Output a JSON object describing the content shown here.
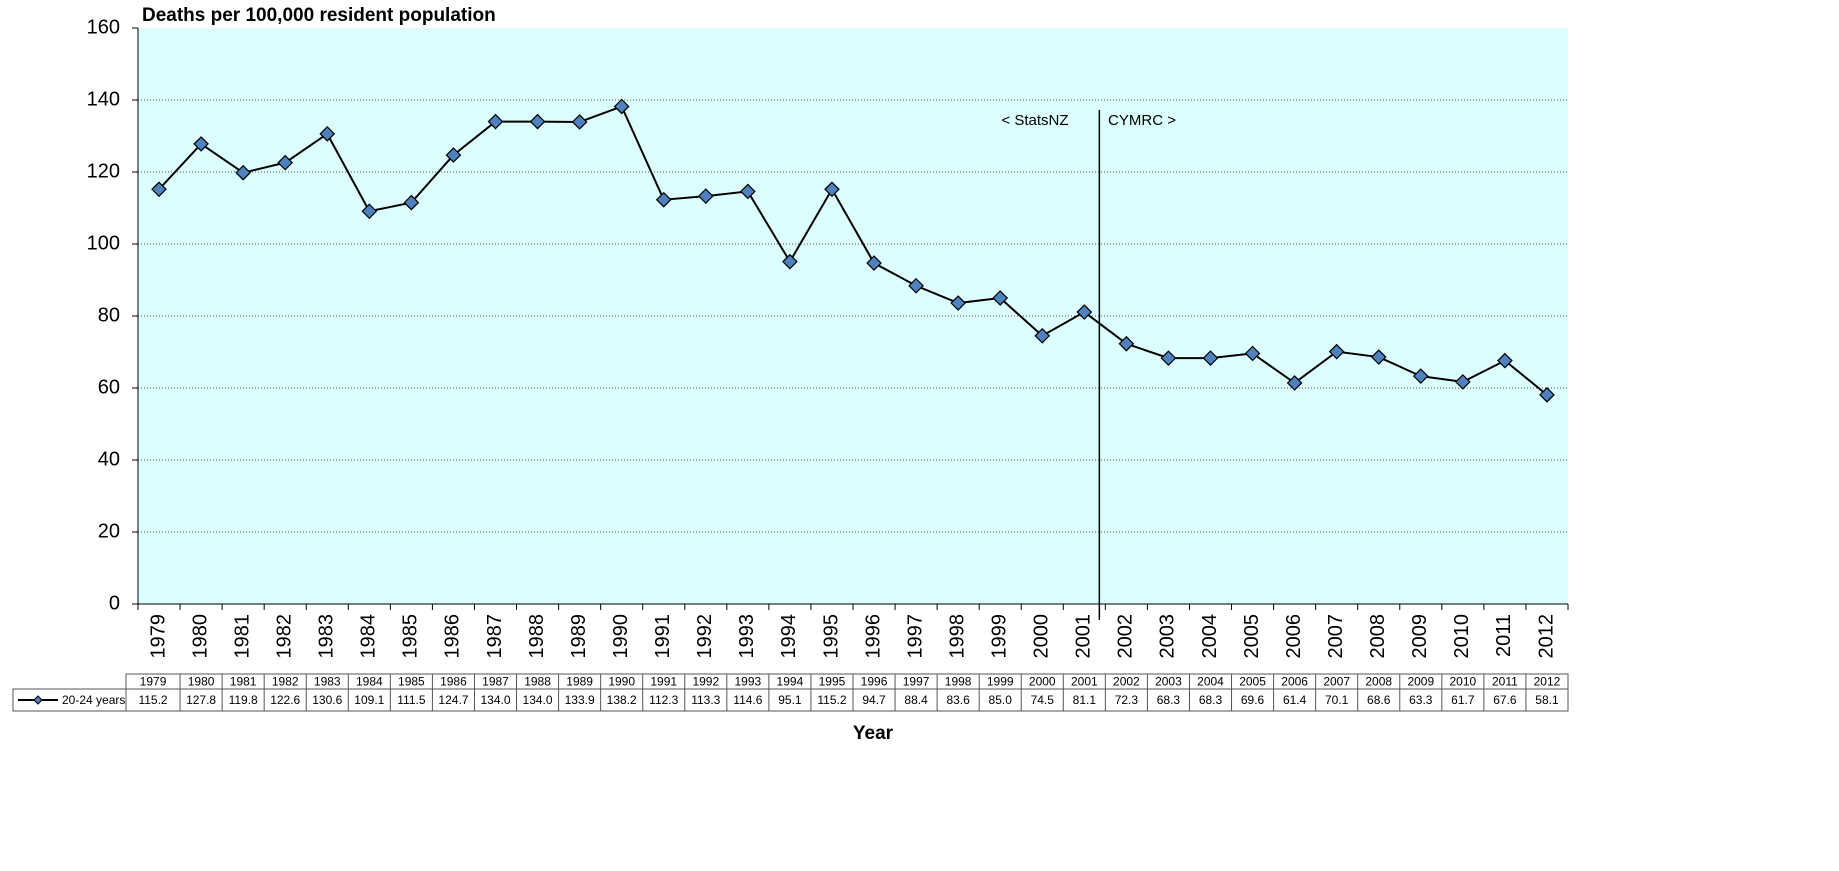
{
  "chart_data": {
    "type": "line",
    "title": "Deaths per 100,000 resident population",
    "x_label": "Year",
    "annotations": [
      "< StatsNZ",
      "CYMRC >"
    ],
    "categories": [
      "1979",
      "1980",
      "1981",
      "1982",
      "1983",
      "1984",
      "1985",
      "1986",
      "1987",
      "1988",
      "1989",
      "1990",
      "1991",
      "1992",
      "1993",
      "1994",
      "1995",
      "1996",
      "1997",
      "1998",
      "1999",
      "2000",
      "2001",
      "2002",
      "2003",
      "2004",
      "2005",
      "2006",
      "2007",
      "2008",
      "2009",
      "2010",
      "2011",
      "2012"
    ],
    "series": [
      {
        "name": "20-24 years",
        "color": "#4f81bd",
        "values": [
          115.2,
          127.8,
          119.8,
          122.6,
          130.6,
          109.1,
          111.5,
          124.7,
          134.0,
          134.0,
          133.9,
          138.2,
          112.3,
          113.3,
          114.6,
          95.1,
          115.2,
          94.7,
          88.4,
          83.6,
          85.0,
          74.5,
          81.1,
          72.3,
          68.3,
          68.3,
          69.6,
          61.4,
          70.1,
          68.6,
          63.3,
          61.7,
          67.6,
          58.1
        ],
        "value_labels": [
          "115.2",
          "127.8",
          "119.8",
          "122.6",
          "130.6",
          "109.1",
          "111.5",
          "124.7",
          "134.0",
          "134.0",
          "133.9",
          "138.2",
          "112.3",
          "113.3",
          "114.6",
          "95.1",
          "115.2",
          "94.7",
          "88.4",
          "83.6",
          "85.0",
          "74.5",
          "81.1",
          "72.3",
          "68.3",
          "68.3",
          "69.6",
          "61.4",
          "70.1",
          "68.6",
          "63.3",
          "61.7",
          "67.6",
          "58.1"
        ]
      }
    ],
    "ylim": [
      0,
      160
    ],
    "yticks": [
      0,
      20,
      40,
      60,
      80,
      100,
      120,
      140,
      160
    ],
    "grid": true
  }
}
